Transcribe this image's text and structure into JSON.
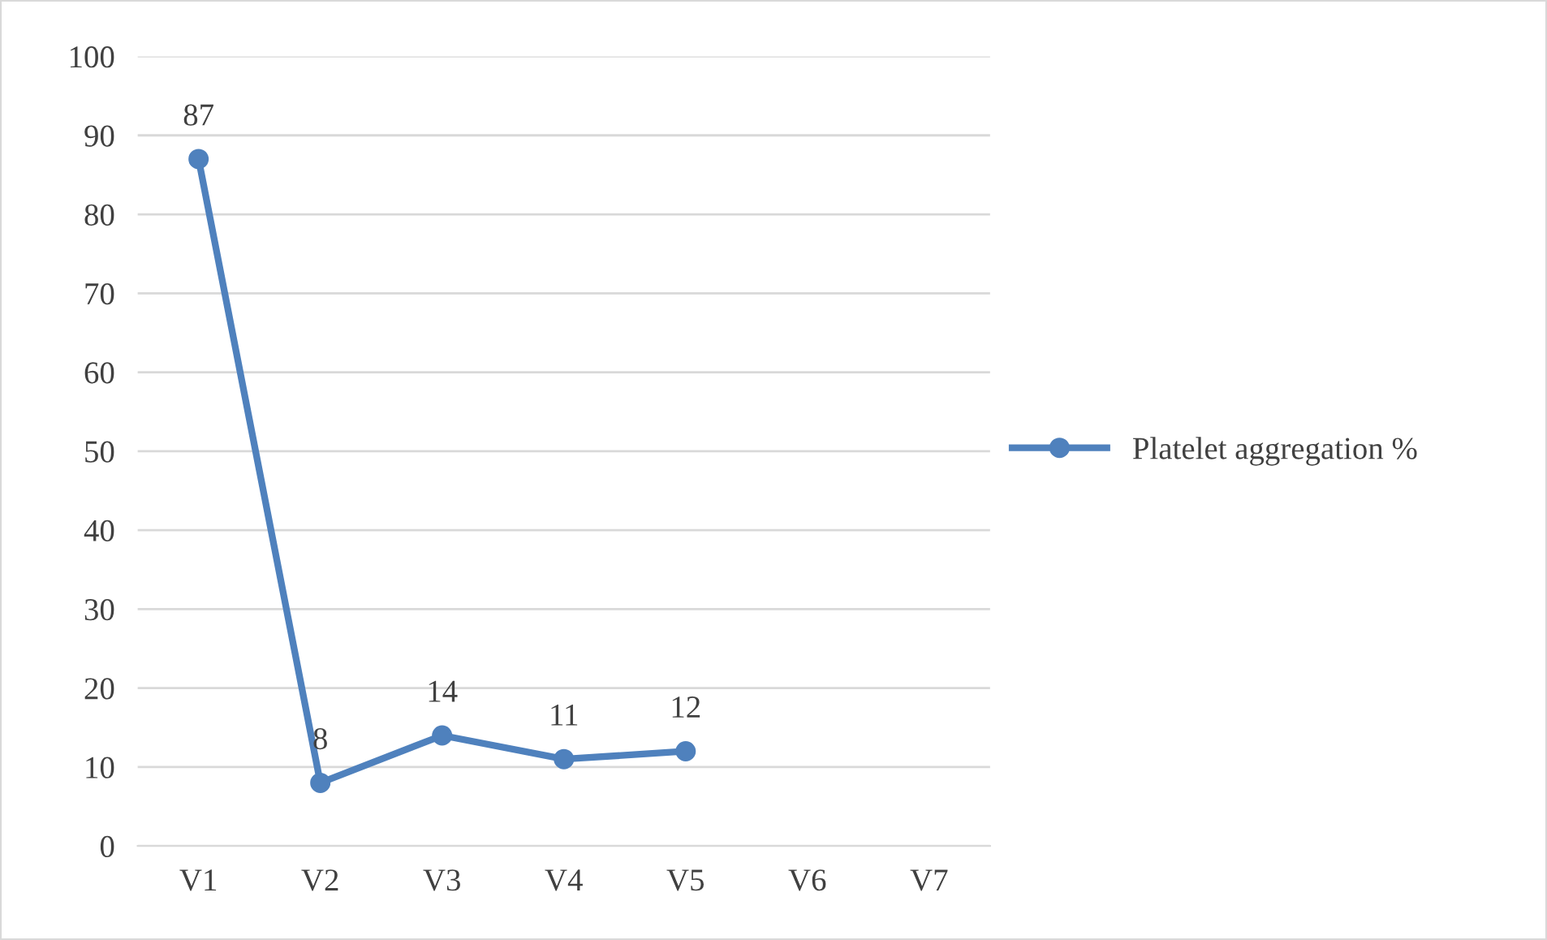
{
  "chart_data": {
    "type": "line",
    "categories": [
      "V1",
      "V2",
      "V3",
      "V4",
      "V5",
      "V6",
      "V7"
    ],
    "series": [
      {
        "name": "Platelet aggregation %",
        "color": "#4f81bd",
        "values": [
          87,
          8,
          14,
          11,
          12,
          null,
          null
        ]
      }
    ],
    "ylim": [
      0,
      100
    ],
    "yticks": [
      0,
      10,
      20,
      30,
      40,
      50,
      60,
      70,
      80,
      90,
      100
    ],
    "grid": "y",
    "legend": "right",
    "marker": "circle",
    "line_style": "solid",
    "data_labels": true
  }
}
